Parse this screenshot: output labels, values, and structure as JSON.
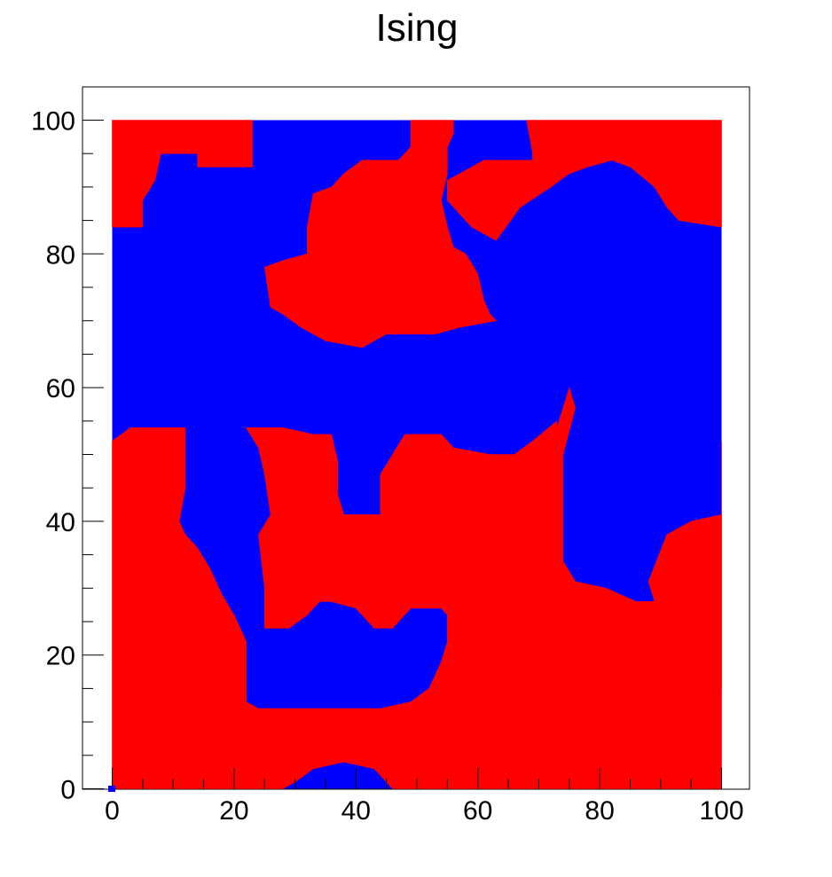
{
  "chart_data": {
    "type": "heatmap",
    "title": "Ising",
    "xlabel": "",
    "ylabel": "",
    "xlim": [
      -5,
      105
    ],
    "ylim": [
      0,
      105
    ],
    "grid": false,
    "x_ticks": [
      0,
      20,
      40,
      60,
      80,
      100
    ],
    "y_ticks": [
      0,
      20,
      40,
      60,
      80,
      100
    ],
    "x_tick_labels": [
      "0",
      "20",
      "40",
      "60",
      "80",
      "100"
    ],
    "y_tick_labels": [
      "0",
      "20",
      "40",
      "60",
      "80",
      "100"
    ],
    "lattice_size": 100,
    "states": [
      {
        "spin": -1,
        "color": "#0000ff"
      },
      {
        "spin": 1,
        "color": "#ff0000"
      }
    ],
    "spin_up_regions": [
      [
        [
          0,
          100
        ],
        [
          0,
          84
        ],
        [
          5,
          84
        ],
        [
          5,
          88
        ],
        [
          7,
          91
        ],
        [
          8,
          95
        ],
        [
          14,
          95
        ],
        [
          14,
          93
        ],
        [
          23,
          93
        ],
        [
          23,
          100
        ]
      ],
      [
        [
          49,
          100
        ],
        [
          56,
          100
        ],
        [
          56,
          98
        ],
        [
          55,
          96
        ],
        [
          55,
          92
        ],
        [
          54,
          88
        ],
        [
          55,
          84
        ],
        [
          56,
          81
        ],
        [
          58,
          80
        ],
        [
          60,
          77
        ],
        [
          61,
          73
        ],
        [
          62,
          71
        ],
        [
          63,
          70
        ],
        [
          57,
          69
        ],
        [
          53,
          68
        ],
        [
          45,
          68
        ],
        [
          41,
          66
        ],
        [
          35,
          67
        ],
        [
          31,
          69
        ],
        [
          28,
          71
        ],
        [
          26,
          72
        ],
        [
          25,
          78
        ],
        [
          28,
          79
        ],
        [
          32,
          80
        ],
        [
          32,
          84
        ],
        [
          33,
          89
        ],
        [
          36,
          90
        ],
        [
          38,
          92
        ],
        [
          41,
          94
        ],
        [
          47,
          94
        ],
        [
          49,
          96
        ]
      ],
      [
        [
          68,
          100
        ],
        [
          100,
          100
        ],
        [
          100,
          84
        ],
        [
          93,
          85
        ],
        [
          91,
          87
        ],
        [
          89,
          90
        ],
        [
          85,
          93
        ],
        [
          82,
          94
        ],
        [
          78,
          93
        ],
        [
          75,
          92
        ],
        [
          72,
          90
        ],
        [
          67,
          87
        ],
        [
          63,
          82
        ],
        [
          59,
          84
        ],
        [
          57,
          86
        ],
        [
          55,
          88
        ],
        [
          55,
          91
        ],
        [
          61,
          94
        ],
        [
          69,
          94
        ],
        [
          69,
          95
        ]
      ],
      [
        [
          0,
          0
        ],
        [
          0,
          52
        ],
        [
          3,
          54
        ],
        [
          12,
          54
        ],
        [
          12,
          50
        ],
        [
          12,
          45
        ],
        [
          11,
          40
        ],
        [
          12,
          38
        ],
        [
          14,
          36
        ],
        [
          16,
          33
        ],
        [
          18,
          29
        ],
        [
          20,
          26
        ],
        [
          21,
          24
        ],
        [
          22,
          22
        ],
        [
          22,
          14
        ],
        [
          22,
          13
        ],
        [
          24,
          12
        ],
        [
          40,
          12
        ],
        [
          44,
          12
        ],
        [
          49,
          13
        ],
        [
          52,
          15
        ],
        [
          54,
          19
        ],
        [
          55,
          22
        ],
        [
          55,
          27
        ],
        [
          55,
          33
        ],
        [
          56,
          38
        ],
        [
          59,
          41
        ],
        [
          63,
          43
        ],
        [
          67,
          47
        ],
        [
          70,
          48
        ],
        [
          73,
          54
        ],
        [
          75,
          60
        ],
        [
          76,
          57
        ],
        [
          74,
          50
        ],
        [
          74,
          42
        ],
        [
          74,
          34
        ],
        [
          76,
          31
        ],
        [
          81,
          30
        ],
        [
          86,
          28
        ],
        [
          90,
          28
        ],
        [
          94,
          31
        ],
        [
          97,
          34
        ],
        [
          100,
          38
        ],
        [
          100,
          52
        ],
        [
          100,
          0
        ],
        [
          57,
          0
        ],
        [
          57,
          5
        ],
        [
          62,
          8
        ],
        [
          68,
          10
        ],
        [
          72,
          9
        ],
        [
          75,
          6
        ],
        [
          78,
          3
        ],
        [
          78,
          0
        ],
        [
          46,
          0
        ],
        [
          43,
          3
        ],
        [
          38,
          4
        ],
        [
          33,
          3
        ],
        [
          30,
          1
        ],
        [
          28,
          0
        ]
      ],
      [
        [
          22,
          54
        ],
        [
          28,
          54
        ],
        [
          33,
          53
        ],
        [
          36,
          53
        ],
        [
          37,
          49
        ],
        [
          37,
          44
        ],
        [
          38,
          41
        ],
        [
          41,
          41
        ],
        [
          44,
          41
        ],
        [
          44,
          47
        ],
        [
          48,
          53
        ],
        [
          54,
          53
        ],
        [
          56,
          51
        ],
        [
          62,
          50
        ],
        [
          66,
          50
        ],
        [
          69,
          52
        ],
        [
          73,
          55
        ],
        [
          73,
          50
        ],
        [
          72,
          44
        ],
        [
          71,
          37
        ],
        [
          72,
          32
        ],
        [
          69,
          28
        ],
        [
          65,
          25
        ],
        [
          61,
          24
        ],
        [
          56,
          25
        ],
        [
          54,
          27
        ],
        [
          49,
          27
        ],
        [
          46,
          24
        ],
        [
          43,
          24
        ],
        [
          40,
          27
        ],
        [
          36,
          28
        ],
        [
          34,
          28
        ],
        [
          32,
          26
        ],
        [
          29,
          24
        ],
        [
          25,
          24
        ],
        [
          25,
          30
        ],
        [
          24,
          38
        ],
        [
          26,
          41
        ],
        [
          25,
          47
        ],
        [
          24,
          51
        ]
      ],
      [
        [
          89,
          28
        ],
        [
          88,
          31
        ],
        [
          91,
          38
        ],
        [
          95,
          40
        ],
        [
          100,
          41
        ],
        [
          100,
          15
        ],
        [
          93,
          15
        ],
        [
          89,
          18
        ],
        [
          82,
          18
        ],
        [
          77,
          22
        ],
        [
          78,
          27
        ],
        [
          83,
          28
        ]
      ]
    ]
  }
}
